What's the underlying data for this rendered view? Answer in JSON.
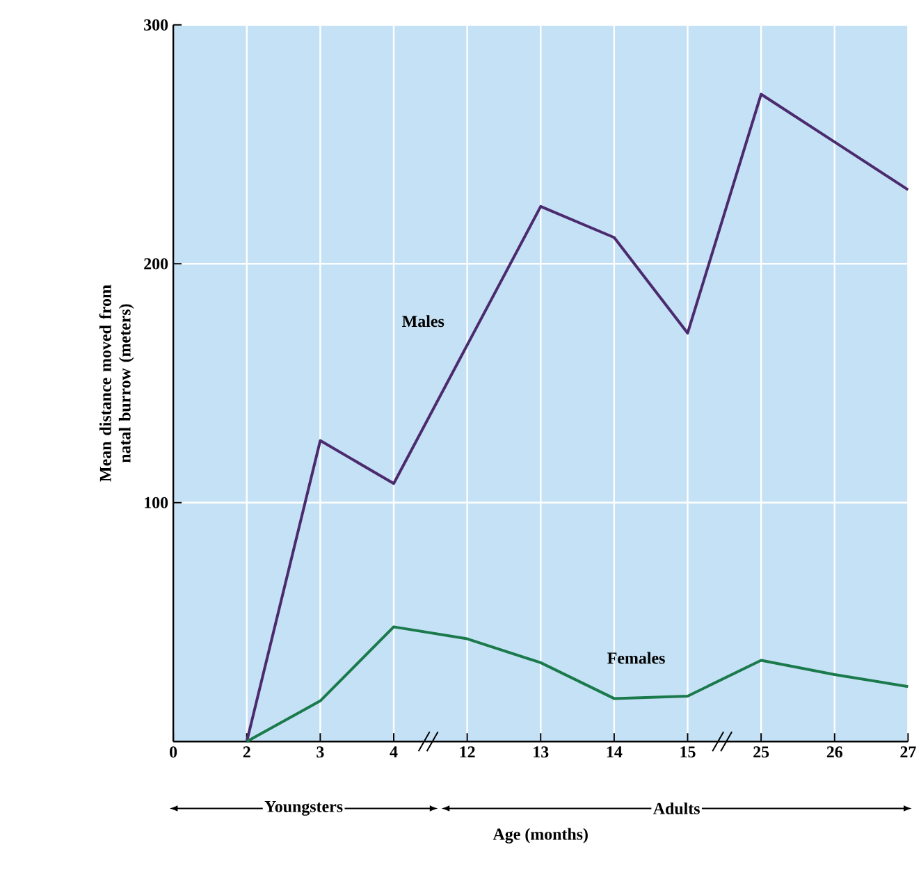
{
  "chart_data": {
    "type": "line",
    "xlabel": "Age (months)",
    "ylabel": "Mean distance moved from natal burrow (meters)",
    "categories": [
      "0",
      "2",
      "3",
      "4",
      "12",
      "13",
      "14",
      "15",
      "25",
      "26",
      "27"
    ],
    "series": [
      {
        "name": "Males",
        "color": "#4b2a6e",
        "values": [
          null,
          0,
          126,
          108,
          166,
          224,
          211,
          171,
          271,
          251,
          231
        ]
      },
      {
        "name": "Females",
        "color": "#1b7a4c",
        "values": [
          null,
          0,
          17,
          48,
          43,
          33,
          18,
          19,
          34,
          28,
          23
        ]
      }
    ],
    "ylim": [
      0,
      300
    ],
    "yticks": [
      100,
      200,
      300
    ],
    "grid": true,
    "marker": "none",
    "line_style": "solid",
    "annotations": [
      "Youngsters",
      "Adults"
    ]
  }
}
